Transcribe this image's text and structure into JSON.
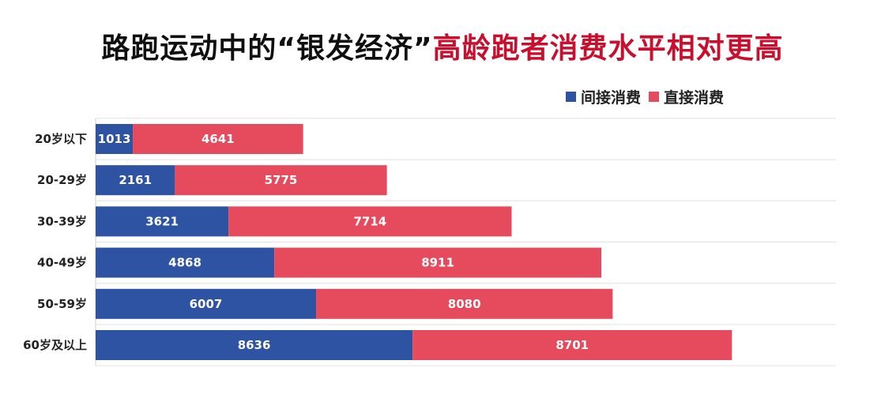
{
  "title": {
    "part1": "路跑运动中的“银发经济”",
    "part2": "高龄跑者消费水平相对更高",
    "color_part1": "#0f0f0f",
    "color_part2": "#c8102e"
  },
  "chart_data": {
    "type": "bar",
    "orientation": "horizontal",
    "stacked": true,
    "categories": [
      "20岁以下",
      "20-29岁",
      "30-39岁",
      "40-49岁",
      "50-59岁",
      "60岁及以上"
    ],
    "series": [
      {
        "name": "间接消费",
        "color": "#2e53a3",
        "values": [
          1013,
          2161,
          3621,
          4868,
          6007,
          8636
        ]
      },
      {
        "name": "直接消费",
        "color": "#e64b5d",
        "values": [
          4641,
          5775,
          7714,
          8911,
          8080,
          8701
        ]
      }
    ],
    "xlim": [
      0,
      20000
    ],
    "legend_position": "top-right",
    "grid": "horizontal"
  }
}
